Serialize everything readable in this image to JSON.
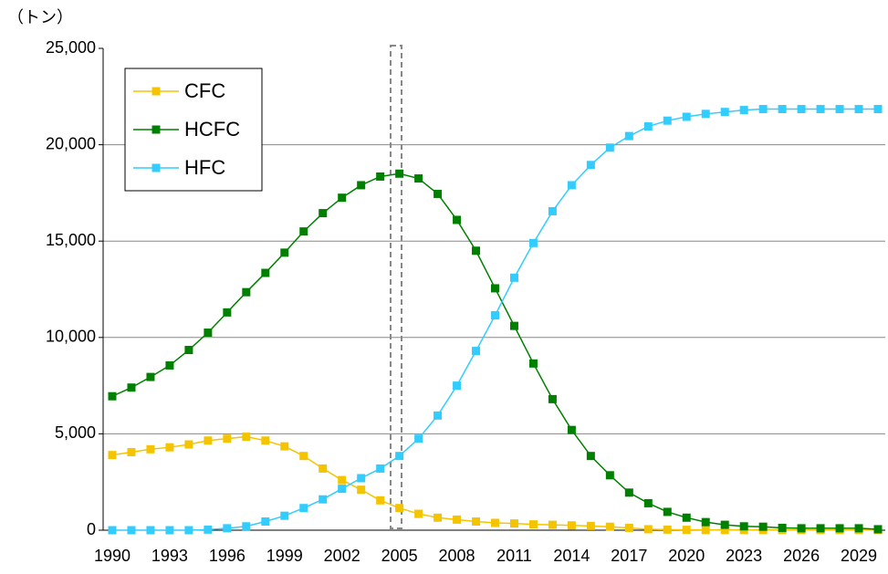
{
  "chart_data": {
    "type": "line",
    "y_label": "（トン）",
    "categories": [
      "1990",
      null,
      null,
      "1993",
      null,
      null,
      "1996",
      null,
      null,
      "1999",
      null,
      null,
      "2002",
      null,
      null,
      "2005",
      null,
      null,
      "2008",
      null,
      null,
      "2011",
      null,
      null,
      "2014",
      null,
      null,
      "2017",
      null,
      null,
      "2020",
      null,
      null,
      "2023",
      null,
      null,
      "2026",
      null,
      null,
      "2029",
      null
    ],
    "series": [
      {
        "name": "CFC",
        "color": "#f5c400",
        "values": [
          3900,
          4050,
          4200,
          4300,
          4450,
          4650,
          4750,
          4850,
          4650,
          4350,
          3850,
          3200,
          2600,
          2100,
          1550,
          1150,
          850,
          650,
          550,
          450,
          380,
          350,
          300,
          280,
          250,
          220,
          180,
          120,
          50,
          30,
          20,
          10,
          10,
          10,
          10,
          10,
          10,
          10,
          10,
          10,
          10
        ]
      },
      {
        "name": "HCFC",
        "color": "#008000",
        "values": [
          6950,
          7400,
          7950,
          8550,
          9350,
          10250,
          11300,
          12350,
          13350,
          14400,
          15500,
          16450,
          17250,
          17900,
          18350,
          18500,
          18250,
          17450,
          16100,
          14500,
          12550,
          10600,
          8650,
          6800,
          5200,
          3850,
          2850,
          1950,
          1400,
          950,
          650,
          420,
          280,
          200,
          180,
          120,
          100,
          100,
          100,
          100,
          50
        ]
      },
      {
        "name": "HFC",
        "color": "#33ccff",
        "values": [
          0,
          0,
          0,
          0,
          0,
          30,
          100,
          200,
          450,
          750,
          1150,
          1600,
          2150,
          2700,
          3200,
          3850,
          4750,
          5950,
          7500,
          9300,
          11150,
          13100,
          14900,
          16550,
          17900,
          18950,
          19850,
          20450,
          20950,
          21250,
          21450,
          21600,
          21700,
          21800,
          21850,
          21850,
          21850,
          21850,
          21850,
          21850,
          21850
        ]
      }
    ],
    "ylim": [
      0,
      25000
    ],
    "yticks": [
      {
        "value": 0,
        "label": "0"
      },
      {
        "value": 5000,
        "label": "5,000"
      },
      {
        "value": 10000,
        "label": "10,000"
      },
      {
        "value": 15000,
        "label": "15,000"
      },
      {
        "value": 20000,
        "label": "20,000"
      },
      {
        "value": 25000,
        "label": "25,000"
      }
    ],
    "grid": true,
    "legend": "upper left"
  }
}
